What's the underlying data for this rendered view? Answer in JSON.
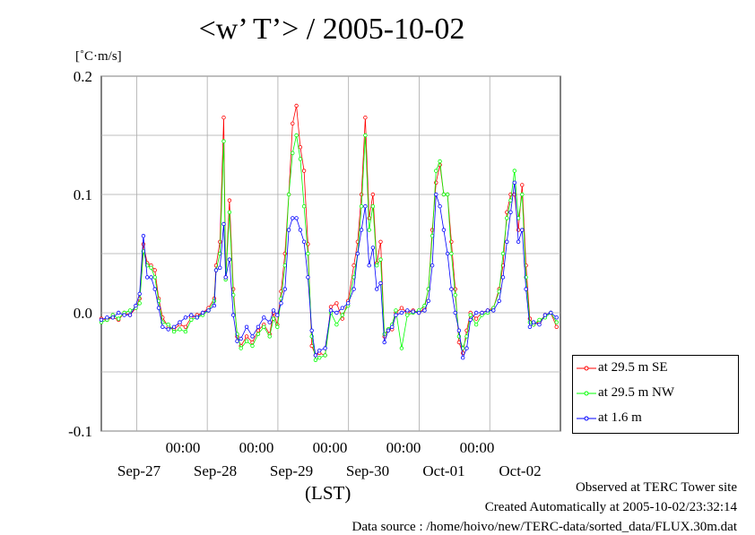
{
  "title": "<w’ T’> / 2005-10-02",
  "colors": {
    "se": "#ff0000",
    "nw": "#00ff00",
    "low": "#0000ff",
    "grid": "#aaaaaa"
  },
  "chart_data": {
    "type": "line",
    "title": "<w’ T’> / 2005-10-02",
    "ylabel": "[˚C·m/s]",
    "xlabel": "(LST)",
    "ylim": [
      -0.1,
      0.2
    ],
    "yticks": [
      "0.2",
      "0.1",
      "0.0",
      "-0.1"
    ],
    "x_axis": {
      "start": "2005-09-26 12:00",
      "end": "2005-10-03 00:00",
      "time_ticks": [
        "00:00",
        "00:00",
        "00:00",
        "00:00",
        "00:00"
      ],
      "date_ticks": [
        "Sep-27",
        "Sep-28",
        "Sep-29",
        "Sep-30",
        "Oct-01",
        "Oct-02"
      ]
    },
    "grid": true,
    "legend_position": "bottom-right outside",
    "series": [
      {
        "name": "at 29.5 m SE",
        "color": "#ff0000",
        "points": [
          [
            0,
            -0.005
          ],
          [
            0.3,
            -0.006
          ],
          [
            0.6,
            -0.004
          ],
          [
            0.9,
            -0.006
          ],
          [
            1.2,
            0.0
          ],
          [
            1.5,
            -0.002
          ],
          [
            1.8,
            0.004
          ],
          [
            2.0,
            0.012
          ],
          [
            2.2,
            0.058
          ],
          [
            2.4,
            0.042
          ],
          [
            2.6,
            0.04
          ],
          [
            2.8,
            0.036
          ],
          [
            3.0,
            0.012
          ],
          [
            3.2,
            -0.004
          ],
          [
            3.5,
            -0.012
          ],
          [
            3.8,
            -0.014
          ],
          [
            4.1,
            -0.01
          ],
          [
            4.4,
            -0.012
          ],
          [
            4.7,
            -0.004
          ],
          [
            5.0,
            -0.002
          ],
          [
            5.3,
            0.0
          ],
          [
            5.6,
            0.004
          ],
          [
            5.9,
            0.012
          ],
          [
            6.0,
            0.04
          ],
          [
            6.2,
            0.06
          ],
          [
            6.4,
            0.165
          ],
          [
            6.5,
            0.03
          ],
          [
            6.7,
            0.095
          ],
          [
            6.9,
            0.02
          ],
          [
            7.1,
            -0.02
          ],
          [
            7.3,
            -0.028
          ],
          [
            7.6,
            -0.02
          ],
          [
            7.9,
            -0.025
          ],
          [
            8.2,
            -0.015
          ],
          [
            8.5,
            -0.01
          ],
          [
            8.8,
            -0.018
          ],
          [
            9.0,
            0.0
          ],
          [
            9.2,
            -0.01
          ],
          [
            9.4,
            0.018
          ],
          [
            9.6,
            0.05
          ],
          [
            9.8,
            0.1
          ],
          [
            10.0,
            0.16
          ],
          [
            10.2,
            0.175
          ],
          [
            10.4,
            0.14
          ],
          [
            10.6,
            0.12
          ],
          [
            10.8,
            0.058
          ],
          [
            11.0,
            -0.028
          ],
          [
            11.2,
            -0.036
          ],
          [
            11.4,
            -0.034
          ],
          [
            11.7,
            -0.036
          ],
          [
            12.0,
            0.005
          ],
          [
            12.3,
            0.008
          ],
          [
            12.6,
            -0.005
          ],
          [
            12.9,
            0.01
          ],
          [
            13.2,
            0.04
          ],
          [
            13.4,
            0.06
          ],
          [
            13.6,
            0.1
          ],
          [
            13.8,
            0.165
          ],
          [
            14.0,
            0.08
          ],
          [
            14.2,
            0.1
          ],
          [
            14.4,
            0.042
          ],
          [
            14.6,
            0.06
          ],
          [
            14.8,
            -0.02
          ],
          [
            15.0,
            -0.014
          ],
          [
            15.2,
            -0.014
          ],
          [
            15.4,
            0.0
          ],
          [
            15.7,
            0.004
          ],
          [
            16.0,
            0.0
          ],
          [
            16.3,
            0.002
          ],
          [
            16.6,
            0.0
          ],
          [
            16.9,
            0.004
          ],
          [
            17.1,
            0.02
          ],
          [
            17.3,
            0.07
          ],
          [
            17.5,
            0.11
          ],
          [
            17.7,
            0.125
          ],
          [
            17.9,
            0.1
          ],
          [
            18.1,
            0.1
          ],
          [
            18.3,
            0.06
          ],
          [
            18.5,
            0.02
          ],
          [
            18.7,
            -0.025
          ],
          [
            18.9,
            -0.034
          ],
          [
            19.1,
            -0.015
          ],
          [
            19.3,
            0.0
          ],
          [
            19.6,
            -0.005
          ],
          [
            19.9,
            0.0
          ],
          [
            20.2,
            0.002
          ],
          [
            20.5,
            0.004
          ],
          [
            20.8,
            0.02
          ],
          [
            21.0,
            0.04
          ],
          [
            21.2,
            0.085
          ],
          [
            21.4,
            0.1
          ],
          [
            21.6,
            0.1
          ],
          [
            21.8,
            0.07
          ],
          [
            22.0,
            0.108
          ],
          [
            22.2,
            0.04
          ],
          [
            22.4,
            -0.005
          ],
          [
            22.6,
            -0.01
          ],
          [
            22.9,
            -0.008
          ],
          [
            23.2,
            -0.002
          ],
          [
            23.5,
            0.0
          ],
          [
            23.8,
            -0.012
          ]
        ]
      },
      {
        "name": "at 29.5 m NW",
        "color": "#00ff00",
        "points": [
          [
            0,
            -0.008
          ],
          [
            0.3,
            -0.006
          ],
          [
            0.6,
            -0.002
          ],
          [
            0.9,
            -0.005
          ],
          [
            1.2,
            0.0
          ],
          [
            1.5,
            0.002
          ],
          [
            1.8,
            0.004
          ],
          [
            2.0,
            0.008
          ],
          [
            2.2,
            0.052
          ],
          [
            2.4,
            0.04
          ],
          [
            2.6,
            0.038
          ],
          [
            2.8,
            0.03
          ],
          [
            3.0,
            0.01
          ],
          [
            3.2,
            -0.008
          ],
          [
            3.5,
            -0.01
          ],
          [
            3.8,
            -0.016
          ],
          [
            4.1,
            -0.014
          ],
          [
            4.4,
            -0.016
          ],
          [
            4.7,
            -0.006
          ],
          [
            5.0,
            -0.004
          ],
          [
            5.3,
            -0.002
          ],
          [
            5.6,
            0.002
          ],
          [
            5.9,
            0.01
          ],
          [
            6.0,
            0.036
          ],
          [
            6.2,
            0.05
          ],
          [
            6.4,
            0.145
          ],
          [
            6.5,
            0.028
          ],
          [
            6.7,
            0.085
          ],
          [
            6.9,
            0.015
          ],
          [
            7.1,
            -0.018
          ],
          [
            7.3,
            -0.03
          ],
          [
            7.6,
            -0.024
          ],
          [
            7.9,
            -0.028
          ],
          [
            8.2,
            -0.018
          ],
          [
            8.5,
            -0.012
          ],
          [
            8.8,
            -0.02
          ],
          [
            9.0,
            -0.005
          ],
          [
            9.2,
            -0.012
          ],
          [
            9.4,
            0.012
          ],
          [
            9.6,
            0.04
          ],
          [
            9.8,
            0.1
          ],
          [
            10.0,
            0.135
          ],
          [
            10.2,
            0.15
          ],
          [
            10.4,
            0.13
          ],
          [
            10.6,
            0.09
          ],
          [
            10.8,
            0.05
          ],
          [
            11.0,
            -0.02
          ],
          [
            11.2,
            -0.04
          ],
          [
            11.4,
            -0.038
          ],
          [
            11.7,
            -0.036
          ],
          [
            12.0,
            0.0
          ],
          [
            12.3,
            -0.01
          ],
          [
            12.6,
            -0.002
          ],
          [
            12.9,
            0.006
          ],
          [
            13.2,
            0.03
          ],
          [
            13.4,
            0.05
          ],
          [
            13.6,
            0.09
          ],
          [
            13.8,
            0.15
          ],
          [
            14.0,
            0.07
          ],
          [
            14.2,
            0.09
          ],
          [
            14.4,
            0.04
          ],
          [
            14.6,
            0.045
          ],
          [
            14.8,
            -0.018
          ],
          [
            15.0,
            -0.014
          ],
          [
            15.2,
            -0.01
          ],
          [
            15.4,
            0.002
          ],
          [
            15.7,
            -0.03
          ],
          [
            16.0,
            -0.002
          ],
          [
            16.3,
            0.0
          ],
          [
            16.6,
            0.002
          ],
          [
            16.9,
            0.006
          ],
          [
            17.1,
            0.02
          ],
          [
            17.3,
            0.065
          ],
          [
            17.5,
            0.12
          ],
          [
            17.7,
            0.128
          ],
          [
            17.9,
            0.1
          ],
          [
            18.1,
            0.1
          ],
          [
            18.3,
            0.05
          ],
          [
            18.5,
            0.015
          ],
          [
            18.7,
            -0.02
          ],
          [
            18.9,
            -0.03
          ],
          [
            19.1,
            -0.02
          ],
          [
            19.3,
            -0.002
          ],
          [
            19.6,
            -0.01
          ],
          [
            19.9,
            -0.002
          ],
          [
            20.2,
            0.0
          ],
          [
            20.5,
            0.004
          ],
          [
            20.8,
            0.018
          ],
          [
            21.0,
            0.05
          ],
          [
            21.2,
            0.08
          ],
          [
            21.4,
            0.095
          ],
          [
            21.6,
            0.12
          ],
          [
            21.8,
            0.08
          ],
          [
            22.0,
            0.1
          ],
          [
            22.2,
            0.03
          ],
          [
            22.4,
            -0.008
          ],
          [
            22.6,
            -0.01
          ],
          [
            22.9,
            -0.006
          ],
          [
            23.2,
            -0.004
          ],
          [
            23.5,
            0.0
          ],
          [
            23.8,
            -0.008
          ]
        ]
      },
      {
        "name": "at 1.6 m",
        "color": "#0000ff",
        "points": [
          [
            0,
            -0.006
          ],
          [
            0.3,
            -0.004
          ],
          [
            0.6,
            -0.004
          ],
          [
            0.9,
            0.0
          ],
          [
            1.2,
            -0.002
          ],
          [
            1.5,
            -0.002
          ],
          [
            1.8,
            0.006
          ],
          [
            2.0,
            0.016
          ],
          [
            2.2,
            0.065
          ],
          [
            2.4,
            0.03
          ],
          [
            2.6,
            0.03
          ],
          [
            2.8,
            0.02
          ],
          [
            3.0,
            0.004
          ],
          [
            3.2,
            -0.012
          ],
          [
            3.5,
            -0.014
          ],
          [
            3.8,
            -0.012
          ],
          [
            4.1,
            -0.008
          ],
          [
            4.4,
            -0.004
          ],
          [
            4.7,
            -0.002
          ],
          [
            5.0,
            -0.004
          ],
          [
            5.3,
            0.0
          ],
          [
            5.6,
            0.002
          ],
          [
            5.9,
            0.006
          ],
          [
            6.0,
            0.036
          ],
          [
            6.2,
            0.038
          ],
          [
            6.4,
            0.075
          ],
          [
            6.5,
            0.03
          ],
          [
            6.7,
            0.045
          ],
          [
            6.9,
            -0.002
          ],
          [
            7.1,
            -0.024
          ],
          [
            7.3,
            -0.022
          ],
          [
            7.6,
            -0.012
          ],
          [
            7.9,
            -0.02
          ],
          [
            8.2,
            -0.012
          ],
          [
            8.5,
            -0.004
          ],
          [
            8.8,
            -0.008
          ],
          [
            9.0,
            0.002
          ],
          [
            9.2,
            -0.002
          ],
          [
            9.4,
            0.008
          ],
          [
            9.6,
            0.02
          ],
          [
            9.8,
            0.07
          ],
          [
            10.0,
            0.08
          ],
          [
            10.2,
            0.08
          ],
          [
            10.4,
            0.07
          ],
          [
            10.6,
            0.06
          ],
          [
            10.8,
            0.03
          ],
          [
            11.0,
            -0.015
          ],
          [
            11.2,
            -0.036
          ],
          [
            11.4,
            -0.032
          ],
          [
            11.7,
            -0.03
          ],
          [
            12.0,
            0.002
          ],
          [
            12.3,
            0.0
          ],
          [
            12.6,
            0.004
          ],
          [
            12.9,
            0.008
          ],
          [
            13.2,
            0.02
          ],
          [
            13.4,
            0.05
          ],
          [
            13.6,
            0.07
          ],
          [
            13.8,
            0.09
          ],
          [
            14.0,
            0.04
          ],
          [
            14.2,
            0.055
          ],
          [
            14.4,
            0.02
          ],
          [
            14.6,
            0.025
          ],
          [
            14.8,
            -0.025
          ],
          [
            15.0,
            -0.015
          ],
          [
            15.2,
            -0.012
          ],
          [
            15.4,
            -0.002
          ],
          [
            15.7,
            0.0
          ],
          [
            16.0,
            0.002
          ],
          [
            16.3,
            0.001
          ],
          [
            16.6,
            0.0
          ],
          [
            16.9,
            0.002
          ],
          [
            17.1,
            0.01
          ],
          [
            17.3,
            0.04
          ],
          [
            17.5,
            0.1
          ],
          [
            17.7,
            0.09
          ],
          [
            17.9,
            0.07
          ],
          [
            18.1,
            0.05
          ],
          [
            18.3,
            0.02
          ],
          [
            18.5,
            0.0
          ],
          [
            18.7,
            -0.015
          ],
          [
            18.9,
            -0.038
          ],
          [
            19.1,
            -0.03
          ],
          [
            19.3,
            -0.006
          ],
          [
            19.6,
            0.0
          ],
          [
            19.9,
            0.0
          ],
          [
            20.2,
            0.002
          ],
          [
            20.5,
            0.002
          ],
          [
            20.8,
            0.01
          ],
          [
            21.0,
            0.03
          ],
          [
            21.2,
            0.06
          ],
          [
            21.4,
            0.085
          ],
          [
            21.6,
            0.11
          ],
          [
            21.8,
            0.06
          ],
          [
            22.0,
            0.07
          ],
          [
            22.2,
            0.02
          ],
          [
            22.4,
            -0.012
          ],
          [
            22.6,
            -0.008
          ],
          [
            22.9,
            -0.01
          ],
          [
            23.2,
            -0.002
          ],
          [
            23.5,
            0.0
          ],
          [
            23.8,
            -0.004
          ]
        ]
      }
    ]
  },
  "footer": {
    "observed": "Observed at TERC Tower site",
    "created": "Created Automatically at 2005-10-02/23:32:14",
    "source": "Data source : /home/hoivo/new/TERC-data/sorted_data/FLUX.30m.dat"
  }
}
